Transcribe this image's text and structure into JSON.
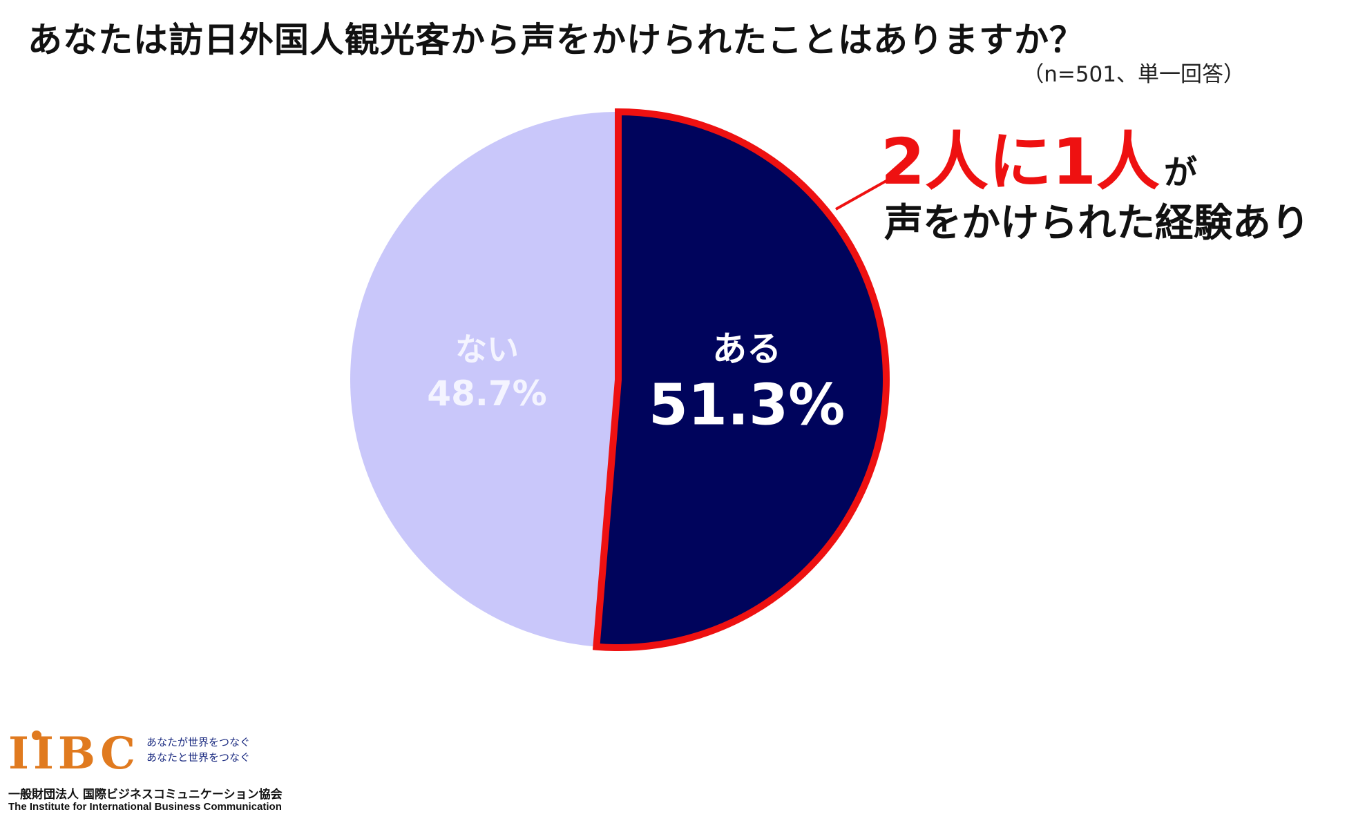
{
  "title": "あなたは訪日外国人観光客から声をかけられたことはありますか？",
  "sample_note": "（n=501、単一回答）",
  "callout": {
    "main": "2人に1人",
    "suffix": "が",
    "sub": "声をかけられた経験あり"
  },
  "chart_data": {
    "type": "pie",
    "title": "あなたは訪日外国人観光客から声をかけられたことはありますか？",
    "subtitle": "（n=501、単一回答）",
    "slices": [
      {
        "label": "ある",
        "value": 51.3,
        "value_label": "51.3%",
        "color": "#00045c",
        "highlight_color": "#ee1111"
      },
      {
        "label": "ない",
        "value": 48.7,
        "value_label": "48.7%",
        "color": "#c9c7fa"
      }
    ],
    "start": "12 o'clock, clockwise"
  },
  "footer": {
    "logo_text": "IIBC",
    "tagline_1": "あなたが世界をつなぐ",
    "tagline_2": "あなたと世界をつなぐ",
    "org_jp": "一般財団法人 国際ビジネスコミュニケーション協会",
    "org_en": "The Institute for International Business Communication"
  }
}
